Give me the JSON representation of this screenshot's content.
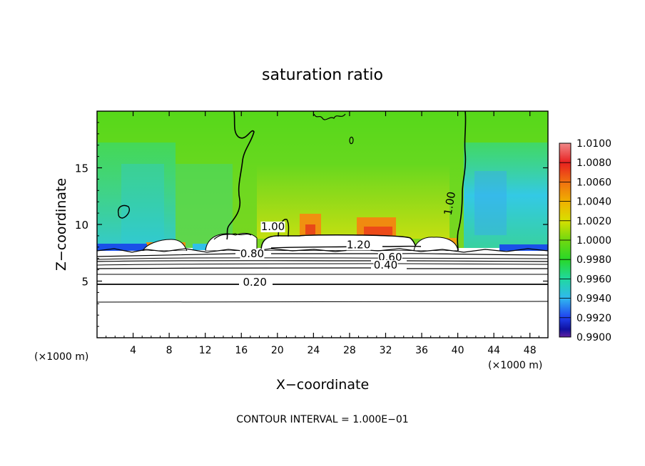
{
  "chart_data": {
    "type": "heatmap",
    "title": "saturation ratio",
    "xlabel": "X−coordinate",
    "ylabel": "Z−coordinate",
    "x_unit_left": "(×1000 m)",
    "x_unit_right": "(×1000 m)",
    "xlim": [
      0,
      50
    ],
    "ylim": [
      0,
      20
    ],
    "x_ticks": [
      4,
      8,
      12,
      16,
      20,
      24,
      28,
      32,
      36,
      40,
      44,
      48
    ],
    "y_ticks": [
      5,
      10,
      15
    ],
    "colorbar": {
      "min": 0.99,
      "max": 1.01,
      "labels": [
        "1.0100",
        "1.0080",
        "1.0060",
        "1.0040",
        "1.0020",
        "1.0000",
        "0.9980",
        "0.9960",
        "0.9940",
        "0.9920",
        "0.9900"
      ],
      "colors": [
        "#f08a8a",
        "#e82020",
        "#f07010",
        "#f0b000",
        "#d8e000",
        "#70d810",
        "#28d828",
        "#20d8a0",
        "#30b8f0",
        "#2040f0",
        "#1010a0",
        "#6020a0"
      ]
    },
    "contour_labels": [
      {
        "text": "1.00",
        "x": 39.5,
        "z": 11.8
      },
      {
        "text": "1.20",
        "x": 29.0,
        "z": 7.9
      },
      {
        "text": "0.80",
        "x": 17.2,
        "z": 7.1
      },
      {
        "text": "0.60",
        "x": 32.5,
        "z": 6.8
      },
      {
        "text": "0.40",
        "x": 32.0,
        "z": 6.1
      },
      {
        "text": "0.20",
        "x": 17.5,
        "z": 4.6
      },
      {
        "text": "1.00",
        "x": 19.5,
        "z": 9.5
      }
    ],
    "footnote": "CONTOUR INTERVAL = 1.000E−01"
  }
}
